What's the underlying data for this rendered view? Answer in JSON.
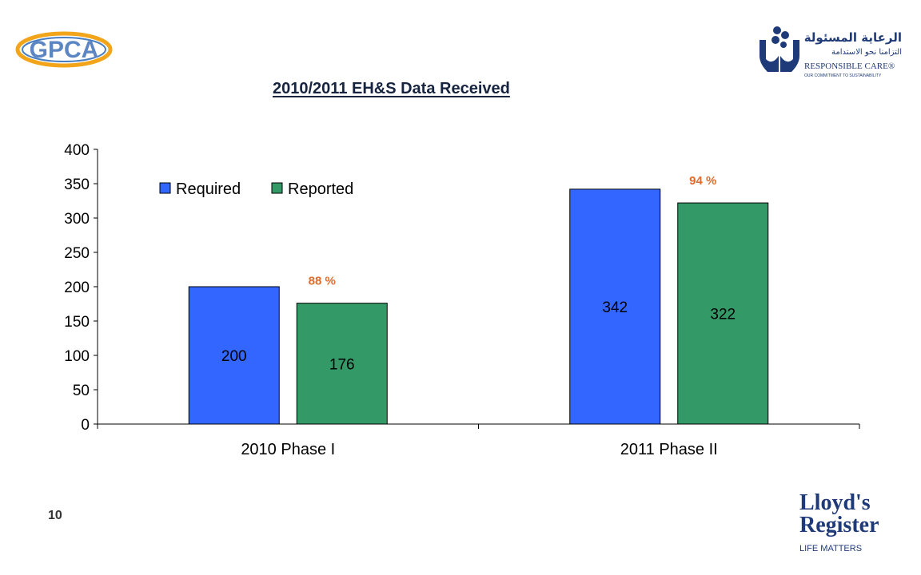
{
  "slide": {
    "title": "2010/2011 EH&S Data Received",
    "page_number": "10"
  },
  "logos": {
    "gpca": "GPCA",
    "responsible_care_arabic_1": "الرعاية المسئولة",
    "responsible_care_arabic_2": "التزامنا نحو الاستدامة",
    "responsible_care": "RESPONSIBLE CARE®",
    "responsible_care_tagline": "OUR COMMITMENT TO SUSTAINABILITY",
    "lloyds_line1": "Lloyd's",
    "lloyds_line2": "Register",
    "lloyds_tagline": "LIFE MATTERS"
  },
  "chart_data": {
    "type": "bar",
    "categories": [
      "2010 Phase I",
      "2011 Phase II"
    ],
    "series": [
      {
        "name": "Required",
        "values": [
          200,
          342
        ],
        "color": "#3366ff"
      },
      {
        "name": "Reported",
        "values": [
          176,
          322
        ],
        "color": "#339966"
      }
    ],
    "ylim": [
      0,
      400
    ],
    "yticks": [
      0,
      50,
      100,
      150,
      200,
      250,
      300,
      350,
      400
    ],
    "grid": false,
    "legend_position": "top-left",
    "annotations": [
      {
        "category": "2010 Phase I",
        "text": "88 %",
        "color": "#e06b2c"
      },
      {
        "category": "2011 Phase II",
        "text": "94 %",
        "color": "#e06b2c"
      }
    ]
  }
}
